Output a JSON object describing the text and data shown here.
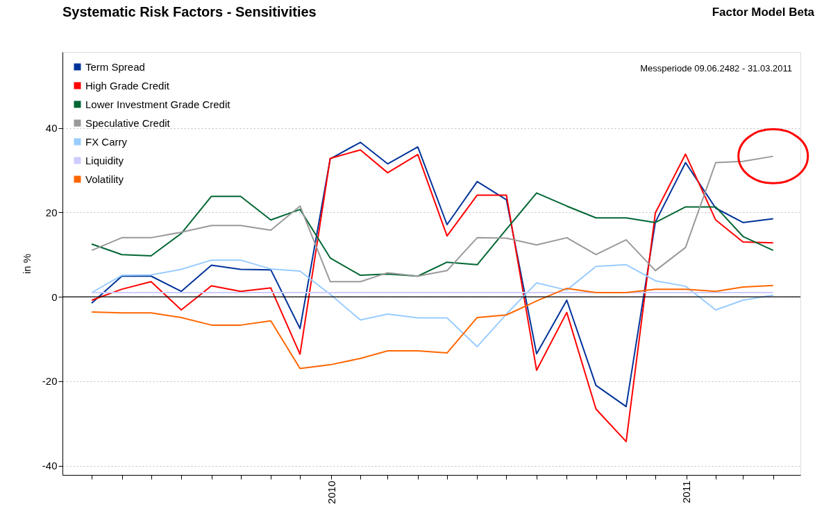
{
  "chart_data": {
    "type": "line",
    "title": "Systematic Risk Factors - Sensitivities",
    "ylabel": "in %",
    "annotations": [
      "Factor Model Beta",
      "Messperiode 09.06.2482 - 31.03.2011"
    ],
    "x": [
      "2009-04-30",
      "2009-05-31",
      "2009-06-30",
      "2009-07-31",
      "2009-08-31",
      "2009-09-30",
      "2009-10-31",
      "2009-11-30",
      "2009-12-31",
      "2010-01-31",
      "2010-02-28",
      "2010-03-31",
      "2010-04-30",
      "2010-05-31",
      "2010-06-30",
      "2010-07-31",
      "2010-08-31",
      "2010-09-30",
      "2010-10-31",
      "2010-11-30",
      "2010-12-31",
      "2011-01-31",
      "2011-02-28",
      "2011-03-31"
    ],
    "series": [
      {
        "name": "Term Spread",
        "color": "#003399",
        "values": [
          -1.5,
          4.9,
          4.9,
          1.3,
          7.5,
          6.5,
          6.4,
          -7.5,
          32.7,
          36.6,
          31.5,
          35.5,
          17.1,
          27.3,
          23,
          -13.5,
          -0.8,
          -21,
          -26,
          17.7,
          31.8,
          21,
          17.6,
          18.5
        ]
      },
      {
        "name": "High Grade Credit",
        "color": "#ff0000",
        "values": [
          -0.8,
          1.8,
          3.6,
          -3.1,
          2.6,
          1.3,
          2.1,
          -13.6,
          32.8,
          34.8,
          29.4,
          33.7,
          14.4,
          24.1,
          24.1,
          -17.4,
          -3.7,
          -26.6,
          -34.3,
          19.9,
          33.8,
          18.2,
          13,
          12.8
        ]
      },
      {
        "name": "Lower Investment Grade Credit",
        "color": "#006633",
        "values": [
          12.5,
          10,
          9.7,
          15,
          23.8,
          23.8,
          18.2,
          20.7,
          9.2,
          5.1,
          5.4,
          4.9,
          8.2,
          7.6,
          16,
          24.6,
          21.5,
          18.7,
          18.7,
          17.6,
          21.3,
          21.3,
          14.3,
          11
        ]
      },
      {
        "name": "Speculative Credit",
        "color": "#999999",
        "values": [
          11,
          14,
          14,
          15.3,
          16.9,
          16.9,
          15.8,
          21.5,
          3.6,
          3.6,
          5.7,
          4.9,
          6.2,
          14,
          13.9,
          12.3,
          14,
          10,
          13.5,
          6.2,
          11.7,
          31.8,
          32.1,
          33.3
        ]
      },
      {
        "name": "FX Carry",
        "color": "#99ccff",
        "values": [
          1,
          5.1,
          5.2,
          6.5,
          8.7,
          8.7,
          6.6,
          6.1,
          0.6,
          -5.5,
          -4.1,
          -5,
          -5,
          -11.8,
          -4.1,
          3.3,
          1.6,
          7.2,
          7.6,
          3.8,
          2.5,
          -3.1,
          -0.8,
          0.4
        ]
      },
      {
        "name": "Liquidity",
        "color": "#ccccff",
        "values": [
          1,
          1,
          1,
          1,
          1,
          1,
          1,
          1,
          1,
          1,
          1,
          1,
          1,
          1,
          1,
          1,
          1,
          1,
          1,
          1,
          1,
          1,
          1,
          1
        ]
      },
      {
        "name": "Volatility",
        "color": "#ff6600",
        "values": [
          -3.6,
          -3.8,
          -3.8,
          -4.9,
          -6.7,
          -6.7,
          -5.7,
          -17,
          -16.1,
          -14.6,
          -12.8,
          -12.8,
          -13.3,
          -4.9,
          -4.3,
          -1,
          2,
          1,
          1,
          1.8,
          1.8,
          1.3,
          2.3,
          2.7
        ]
      }
    ],
    "ylim": [
      -42.2,
      58
    ],
    "yticks": [
      -40,
      -20,
      0,
      20,
      40
    ],
    "xlim": [
      "2009-03-31",
      "2011-04-28"
    ],
    "xticks": [
      {
        "value": "2009-04-30",
        "label": null
      },
      {
        "value": "2009-05-31",
        "label": null
      },
      {
        "value": "2009-06-30",
        "label": null
      },
      {
        "value": "2009-07-31",
        "label": null
      },
      {
        "value": "2009-08-31",
        "label": null
      },
      {
        "value": "2009-09-30",
        "label": null
      },
      {
        "value": "2009-10-31",
        "label": null
      },
      {
        "value": "2009-11-30",
        "label": null
      },
      {
        "value": "2010-01-01",
        "label": "2010"
      },
      {
        "value": "2010-01-31",
        "label": null
      },
      {
        "value": "2010-02-28",
        "label": null
      },
      {
        "value": "2010-03-31",
        "label": null
      },
      {
        "value": "2010-04-30",
        "label": null
      },
      {
        "value": "2010-05-31",
        "label": null
      },
      {
        "value": "2010-06-30",
        "label": null
      },
      {
        "value": "2010-07-31",
        "label": null
      },
      {
        "value": "2010-08-31",
        "label": null
      },
      {
        "value": "2010-09-30",
        "label": null
      },
      {
        "value": "2010-10-31",
        "label": null
      },
      {
        "value": "2010-11-30",
        "label": null
      },
      {
        "value": "2011-01-01",
        "label": "2011"
      },
      {
        "value": "2011-01-31",
        "label": null
      },
      {
        "value": "2011-02-28",
        "label": null
      },
      {
        "value": "2011-03-31",
        "label": null
      }
    ],
    "ref_lines": [
      {
        "axis": "y",
        "value": 0,
        "color": "#000000",
        "line_style": "solid"
      }
    ],
    "grid": "y",
    "legend": "top left",
    "marker": "none",
    "line_style": "solid"
  }
}
